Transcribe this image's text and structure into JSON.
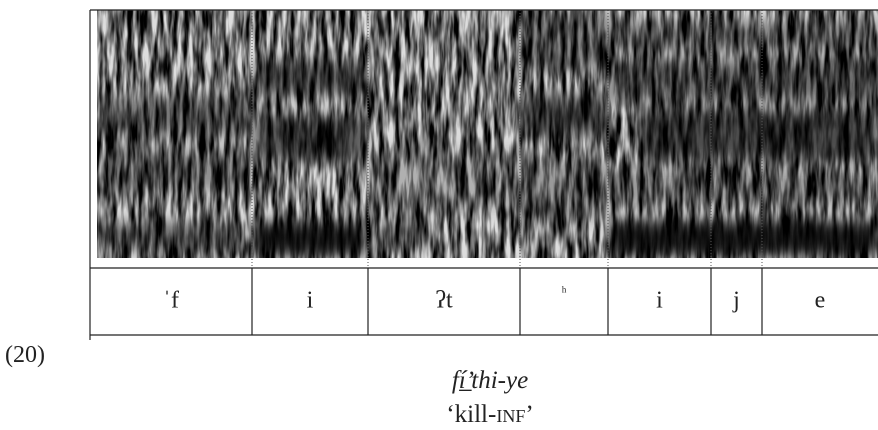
{
  "example_number": "(20)",
  "segments": [
    "ˈf",
    "i",
    "ʔt",
    "ʰ",
    "i",
    "j",
    "e"
  ],
  "caption": {
    "word": "fí̲’thi-ye",
    "gloss": [
      "‘kill-",
      "inf",
      "’"
    ]
  }
}
